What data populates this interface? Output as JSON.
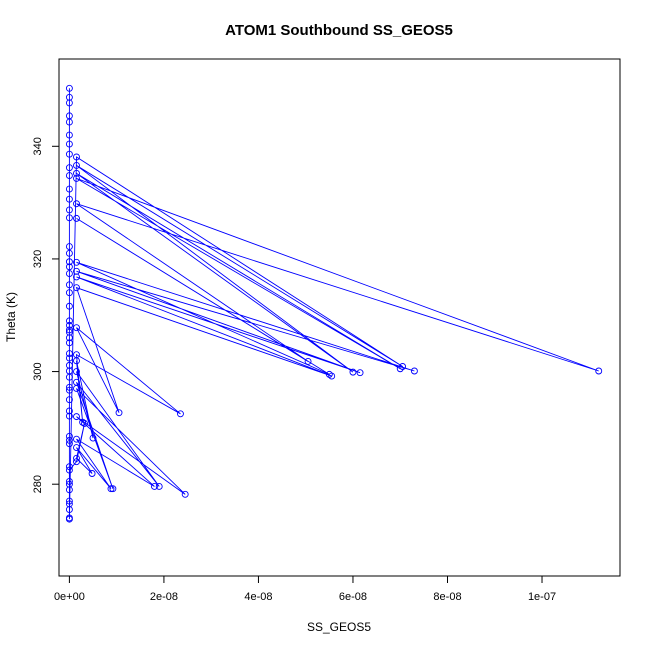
{
  "chart_data": {
    "type": "line",
    "title": "ATOM1 Southbound SS_GEOS5",
    "xlabel": "SS_GEOS5",
    "ylabel": "Theta (K)",
    "xlim": [
      -2.2e-09,
      1.165e-07
    ],
    "ylim": [
      263.7,
      355.5
    ],
    "x_ticks": [
      0,
      2e-08,
      4e-08,
      6e-08,
      8e-08,
      1e-07
    ],
    "x_tick_labels": [
      "0e+00",
      "2e-08",
      "4e-08",
      "6e-08",
      "8e-08",
      "1e-07"
    ],
    "y_ticks": [
      280,
      300,
      320,
      340
    ],
    "y_tick_labels": [
      "280",
      "300",
      "320",
      "340"
    ],
    "grid": false,
    "legend": "none",
    "series_color": "#0000ff",
    "marker": "open-circle",
    "x": [
      0,
      0,
      0,
      0,
      0,
      0,
      0,
      0,
      0,
      0,
      0,
      0,
      0,
      0,
      0,
      0,
      0,
      0,
      0,
      0,
      0,
      0,
      0,
      0,
      0,
      0,
      0,
      0,
      0,
      0,
      0,
      0,
      0,
      0,
      0,
      0,
      0,
      0,
      0,
      0,
      0,
      0,
      0,
      0,
      0,
      0,
      1.5e-09,
      7.05e-08,
      1.5e-09,
      6e-08,
      1.5e-09,
      7e-08,
      1.5e-09,
      1.12e-07,
      1.5e-09,
      5.05e-08,
      1.5e-09,
      5.5e-08,
      1.5e-09,
      7.3e-08,
      1.5e-09,
      6.15e-08,
      1.5e-09,
      5.55e-08,
      1.5e-09,
      1.05e-08,
      1.5e-09,
      2.35e-08,
      1.5e-09,
      2.8e-09,
      1.5e-09,
      5e-09,
      1.5e-09,
      1.9e-08,
      1.5e-09,
      9.2e-09,
      1.5e-09,
      2.45e-08,
      1.5e-09,
      1.8e-08,
      1.5e-09,
      8.8e-09,
      1.5e-09,
      4.8e-09,
      1.5e-09,
      3.2e-09,
      1.5e-09,
      0,
      0,
      0,
      0,
      0
    ],
    "y": [
      350.3,
      348.7,
      347.7,
      345.4,
      344.3,
      342.0,
      340.4,
      338.6,
      336.2,
      334.8,
      332.4,
      330.6,
      328.7,
      327.3,
      322.2,
      321.0,
      319.5,
      318.6,
      317.4,
      315.4,
      314.0,
      311.6,
      309.0,
      308.2,
      307.4,
      307.0,
      306.0,
      305.1,
      303.2,
      302.4,
      301.1,
      300.1,
      299.0,
      297.2,
      296.7,
      295.0,
      293.0,
      292.1,
      288.5,
      287.8,
      287.2,
      283.1,
      280.0,
      276.5,
      275.5,
      273.8,
      338.1,
      300.9,
      336.6,
      299.9,
      335.2,
      300.5,
      334.3,
      300.1,
      329.8,
      301.8,
      327.2,
      299.5,
      319.4,
      300.1,
      317.8,
      299.8,
      316.8,
      299.2,
      314.9,
      292.7,
      307.8,
      292.5,
      303.0,
      291.0,
      301.9,
      288.2,
      300.0,
      279.6,
      298.1,
      279.2,
      297.0,
      278.2,
      292.0,
      279.6,
      288.0,
      279.2,
      286.5,
      281.9,
      284.6,
      290.8,
      284.0,
      282.5,
      280.5,
      279.0,
      277.0,
      274.0
    ]
  }
}
